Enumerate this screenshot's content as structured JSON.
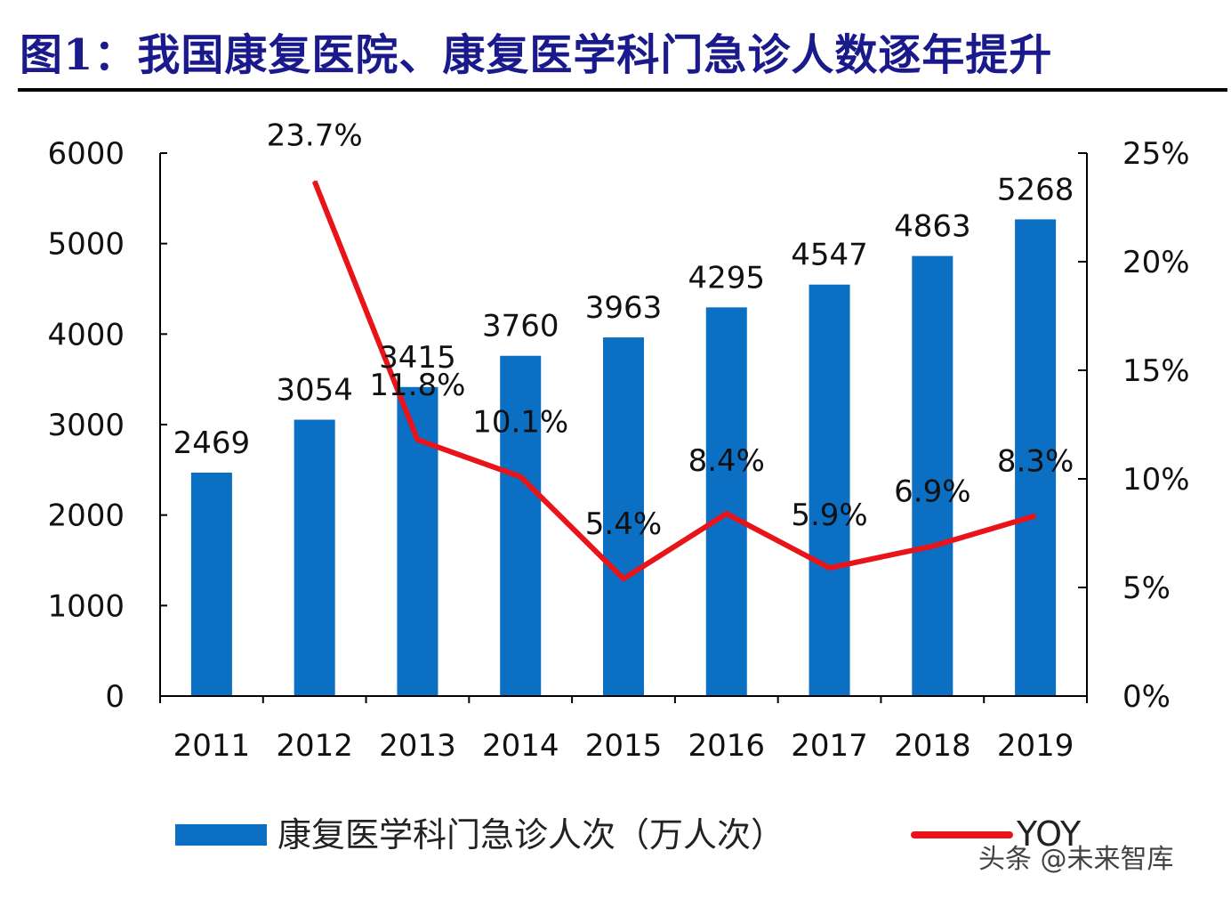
{
  "title": "图1：我国康复医院、康复医学科门急诊人数逐年提升",
  "watermark": "头条 @未来智库",
  "chart_data": {
    "type": "bar+line",
    "title": "图1：我国康复医院、康复医学科门急诊人数逐年提升",
    "categories": [
      "2011",
      "2012",
      "2013",
      "2014",
      "2015",
      "2016",
      "2017",
      "2018",
      "2019"
    ],
    "series": [
      {
        "name": "康复医学科门急诊人次（万人次）",
        "type": "bar",
        "axis": "left",
        "color": "#0b6fc4",
        "values": [
          2469,
          3054,
          3415,
          3760,
          3963,
          4295,
          4547,
          4863,
          5268
        ],
        "labels": [
          "2469",
          "3054",
          "3415",
          "3760",
          "3963",
          "4295",
          "4547",
          "4863",
          "5268"
        ]
      },
      {
        "name": "YOY",
        "type": "line",
        "axis": "right",
        "color": "#e8141a",
        "values": [
          null,
          23.7,
          11.8,
          10.1,
          5.4,
          8.4,
          5.9,
          6.9,
          8.3
        ],
        "labels": [
          "",
          "23.7%",
          "11.8%",
          "10.1%",
          "5.4%",
          "8.4%",
          "5.9%",
          "6.9%",
          "8.3%"
        ]
      }
    ],
    "y_left": {
      "range": [
        0,
        6000
      ],
      "ticks": [
        "0",
        "1000",
        "2000",
        "3000",
        "4000",
        "5000",
        "6000"
      ]
    },
    "y_right": {
      "range": [
        0,
        25
      ],
      "ticks": [
        "0%",
        "5%",
        "10%",
        "15%",
        "20%",
        "25%"
      ]
    },
    "grid": false,
    "legend_position": "bottom"
  }
}
